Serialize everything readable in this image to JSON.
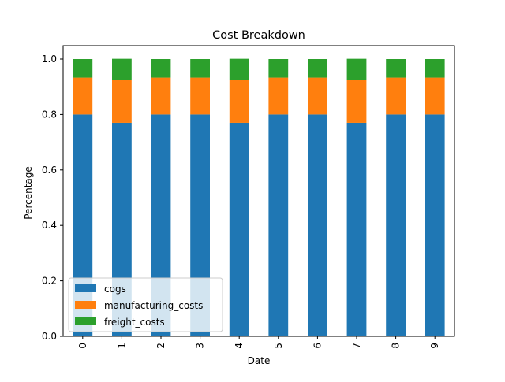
{
  "chart_data": {
    "type": "bar",
    "stacked": true,
    "title": "Cost Breakdown",
    "xlabel": "Date",
    "ylabel": "Percentage",
    "categories": [
      "0",
      "1",
      "2",
      "3",
      "4",
      "5",
      "6",
      "7",
      "8",
      "9"
    ],
    "ylim": [
      0,
      1.0
    ],
    "yticks": [
      "0.0",
      "0.2",
      "0.4",
      "0.6",
      "0.8",
      "1.0"
    ],
    "grid": false,
    "legend_position": "lower-left",
    "series": [
      {
        "name": "cogs",
        "color": "#1f77b4",
        "values": [
          0.8,
          0.77,
          0.8,
          0.8,
          0.77,
          0.8,
          0.8,
          0.77,
          0.8,
          0.8
        ]
      },
      {
        "name": "manufacturing_costs",
        "color": "#ff7f0e",
        "values": [
          0.133,
          0.154,
          0.133,
          0.133,
          0.154,
          0.133,
          0.133,
          0.154,
          0.133,
          0.133
        ]
      },
      {
        "name": "freight_costs",
        "color": "#2ca02c",
        "values": [
          0.067,
          0.077,
          0.067,
          0.067,
          0.077,
          0.067,
          0.067,
          0.077,
          0.067,
          0.067
        ]
      }
    ]
  }
}
